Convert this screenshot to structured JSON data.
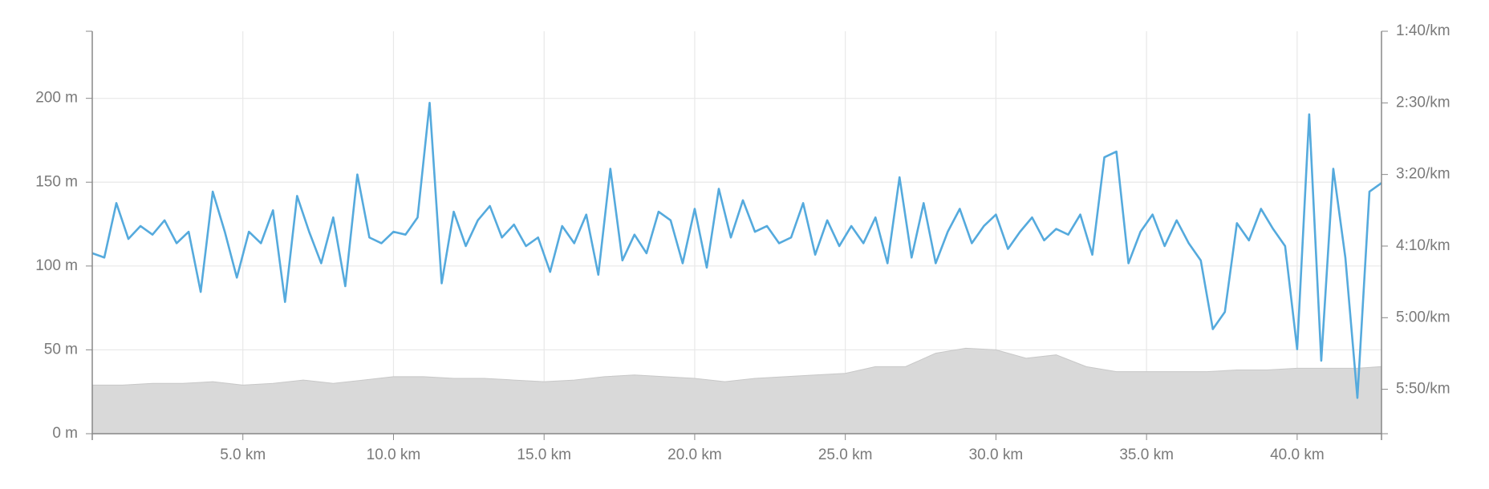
{
  "chart_data": {
    "type": "area-line",
    "xlim": [
      0,
      42.8
    ],
    "xticks": [
      {
        "value": 5,
        "label": "5.0 km"
      },
      {
        "value": 10,
        "label": "10.0 km"
      },
      {
        "value": 15,
        "label": "15.0 km"
      },
      {
        "value": 20,
        "label": "20.0 km"
      },
      {
        "value": 25,
        "label": "25.0 km"
      },
      {
        "value": 30,
        "label": "30.0 km"
      },
      {
        "value": 35,
        "label": "35.0 km"
      },
      {
        "value": 40,
        "label": "40.0 km"
      }
    ],
    "ylim": [
      0,
      240
    ],
    "yticks": [
      {
        "value": 0,
        "label": "0 m"
      },
      {
        "value": 50,
        "label": "50 m"
      },
      {
        "value": 100,
        "label": "100 m"
      },
      {
        "value": 150,
        "label": "150 m"
      },
      {
        "value": 200,
        "label": "200 m"
      }
    ],
    "y2lim": [
      100,
      381
    ],
    "y2_inverted": true,
    "y2ticks": [
      {
        "value": 100,
        "label": "1:40/km"
      },
      {
        "value": 150,
        "label": "2:30/km"
      },
      {
        "value": 200,
        "label": "3:20/km"
      },
      {
        "value": 250,
        "label": "4:10/km"
      },
      {
        "value": 300,
        "label": "5:00/km"
      },
      {
        "value": 350,
        "label": "5:50/km"
      }
    ],
    "grid": true,
    "series": [
      {
        "type": "area",
        "axis": "y",
        "color": "#d9d9d9",
        "x": [
          0,
          1,
          2,
          3,
          4,
          5,
          6,
          7,
          8,
          9,
          10,
          11,
          12,
          13,
          14,
          15,
          16,
          17,
          18,
          19,
          20,
          21,
          22,
          23,
          24,
          25,
          26,
          27,
          28,
          29,
          30,
          31,
          32,
          33,
          34,
          35,
          36,
          37,
          38,
          39,
          40,
          41,
          42,
          42.8
        ],
        "values": [
          29,
          29,
          30,
          30,
          31,
          29,
          30,
          32,
          30,
          32,
          34,
          34,
          33,
          33,
          32,
          31,
          32,
          34,
          35,
          34,
          33,
          31,
          33,
          34,
          35,
          36,
          40,
          40,
          48,
          51,
          50,
          45,
          47,
          40,
          37,
          37,
          37,
          37,
          38,
          38,
          39,
          39,
          39,
          40
        ]
      },
      {
        "type": "line",
        "axis": "y2",
        "color": "#55aadd",
        "x": [
          0,
          0.4,
          0.8,
          1.2,
          1.6,
          2,
          2.4,
          2.8,
          3.2,
          3.6,
          4,
          4.4,
          4.8,
          5.2,
          5.6,
          6,
          6.4,
          6.8,
          7.2,
          7.6,
          8,
          8.4,
          8.8,
          9.2,
          9.6,
          10,
          10.4,
          10.8,
          11.2,
          11.6,
          12,
          12.4,
          12.8,
          13.2,
          13.6,
          14,
          14.4,
          14.8,
          15.2,
          15.6,
          16,
          16.4,
          16.8,
          17.2,
          17.6,
          18,
          18.4,
          18.8,
          19.2,
          19.6,
          20,
          20.4,
          20.8,
          21.2,
          21.6,
          22,
          22.4,
          22.8,
          23.2,
          23.6,
          24,
          24.4,
          24.8,
          25.2,
          25.6,
          26,
          26.4,
          26.8,
          27.2,
          27.6,
          28,
          28.4,
          28.8,
          29.2,
          29.6,
          30,
          30.4,
          30.8,
          31.2,
          31.6,
          32,
          32.4,
          32.8,
          33.2,
          33.6,
          34,
          34.4,
          34.8,
          35.2,
          35.6,
          36,
          36.4,
          36.8,
          37.2,
          37.6,
          38,
          38.4,
          38.8,
          39.2,
          39.6,
          40,
          40.4,
          40.8,
          41.2,
          41.6,
          42,
          42.4,
          42.8
        ],
        "values": [
          255,
          258,
          220,
          245,
          236,
          242,
          232,
          248,
          240,
          282,
          212,
          240,
          272,
          240,
          248,
          225,
          289,
          215,
          240,
          262,
          230,
          278,
          200,
          244,
          248,
          240,
          242,
          230,
          150,
          276,
          226,
          250,
          232,
          222,
          244,
          235,
          250,
          244,
          268,
          236,
          248,
          228,
          270,
          196,
          260,
          242,
          255,
          226,
          232,
          262,
          224,
          265,
          210,
          244,
          218,
          240,
          236,
          248,
          244,
          220,
          256,
          232,
          250,
          236,
          248,
          230,
          262,
          202,
          258,
          220,
          262,
          240,
          224,
          248,
          236,
          228,
          252,
          240,
          230,
          246,
          238,
          242,
          228,
          256,
          188,
          184,
          262,
          240,
          228,
          250,
          232,
          248,
          260,
          308,
          296,
          234,
          246,
          224,
          238,
          250,
          322,
          158,
          330,
          196,
          258,
          356,
          212,
          206
        ]
      }
    ]
  }
}
